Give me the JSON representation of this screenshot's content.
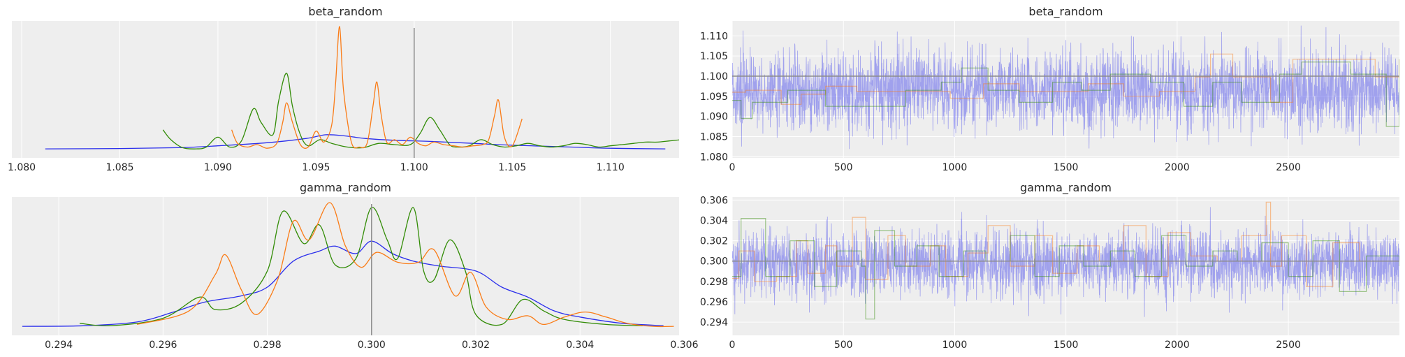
{
  "colors": {
    "panel_bg": "#eeeeee",
    "grid": "#ffffff",
    "ref_line": "#8c8c8c",
    "chain_blue": "#2a2eec",
    "chain_orange": "#fa7c17",
    "chain_green": "#328c06"
  },
  "chart_data": [
    {
      "type": "line",
      "subtype": "kde",
      "title": "beta_random",
      "xlabel": "",
      "ylabel": "",
      "xlim": [
        1.0795,
        1.1135
      ],
      "xticks": [
        1.08,
        1.085,
        1.09,
        1.095,
        1.1,
        1.105,
        1.11
      ],
      "xtick_labels": [
        "1.080",
        "1.085",
        "1.090",
        "1.095",
        "1.100",
        "1.105",
        "1.110"
      ],
      "yticks_visible": false,
      "grid": "x",
      "reference_line": 1.1,
      "series": [
        {
          "color": "#2a2eec",
          "x": [
            1.0812,
            1.085,
            1.088,
            1.09,
            1.0925,
            1.0945,
            1.0955,
            1.0965,
            1.0975,
            1.099,
            1.101,
            1.103,
            1.105,
            1.108,
            1.11,
            1.1128
          ],
          "y": [
            0.005,
            0.008,
            0.015,
            0.03,
            0.055,
            0.09,
            0.12,
            0.11,
            0.09,
            0.075,
            0.065,
            0.05,
            0.035,
            0.02,
            0.01,
            0.005
          ]
        },
        {
          "color": "#328c06",
          "x": [
            1.0872,
            1.0876,
            1.0882,
            1.0889,
            1.0894,
            1.09,
            1.0906,
            1.0912,
            1.0918,
            1.0922,
            1.0928,
            1.0931,
            1.0935,
            1.0938,
            1.0942,
            1.0946,
            1.0952,
            1.0958,
            1.0966,
            1.0974,
            1.0982,
            1.099,
            1.0998,
            1.1003,
            1.1008,
            1.1013,
            1.1018,
            1.1022,
            1.1028,
            1.1034,
            1.104,
            1.1046,
            1.1052,
            1.1058,
            1.1064,
            1.107,
            1.1076,
            1.1082,
            1.1088,
            1.1094,
            1.11,
            1.1106,
            1.1112,
            1.1118,
            1.1124,
            1.113,
            1.1136,
            1.1141
          ],
          "y": [
            0.16,
            0.08,
            0.015,
            0.005,
            0.02,
            0.1,
            0.02,
            0.07,
            0.33,
            0.22,
            0.12,
            0.4,
            0.62,
            0.35,
            0.12,
            0.03,
            0.08,
            0.05,
            0.02,
            0.015,
            0.05,
            0.04,
            0.04,
            0.13,
            0.26,
            0.16,
            0.04,
            0.02,
            0.03,
            0.08,
            0.04,
            0.02,
            0.03,
            0.05,
            0.03,
            0.02,
            0.03,
            0.05,
            0.04,
            0.02,
            0.03,
            0.04,
            0.05,
            0.06,
            0.06,
            0.07,
            0.08,
            0.09
          ]
        },
        {
          "color": "#fa7c17",
          "x": [
            1.0907,
            1.091,
            1.0915,
            1.092,
            1.0925,
            1.093,
            1.0933,
            1.0935,
            1.0938,
            1.0942,
            1.0946,
            1.095,
            1.0954,
            1.0958,
            1.096,
            1.0962,
            1.0964,
            1.0968,
            1.0972,
            1.0976,
            1.0979,
            1.0981,
            1.0983,
            1.0986,
            1.099,
            1.0994,
            1.0998,
            1.1002,
            1.1006,
            1.101,
            1.1015,
            1.102,
            1.1025,
            1.103,
            1.1035,
            1.1038,
            1.1041,
            1.1043,
            1.1046,
            1.105,
            1.1055
          ],
          "y": [
            0.16,
            0.05,
            0.02,
            0.04,
            0.01,
            0.05,
            0.22,
            0.38,
            0.22,
            0.04,
            0.02,
            0.15,
            0.06,
            0.2,
            0.55,
            1.0,
            0.48,
            0.06,
            0.02,
            0.05,
            0.35,
            0.55,
            0.3,
            0.06,
            0.08,
            0.04,
            0.1,
            0.05,
            0.03,
            0.06,
            0.04,
            0.03,
            0.02,
            0.03,
            0.04,
            0.08,
            0.28,
            0.4,
            0.1,
            0.03,
            0.25
          ]
        }
      ]
    },
    {
      "type": "line",
      "subtype": "trace",
      "title": "beta_random",
      "xlabel": "",
      "ylabel": "",
      "xlim": [
        0,
        2999
      ],
      "ylim": [
        1.0797,
        1.1137
      ],
      "xticks": [
        0,
        500,
        1000,
        1500,
        2000,
        2500
      ],
      "xtick_labels": [
        "0",
        "500",
        "1000",
        "1500",
        "2000",
        "2500"
      ],
      "yticks": [
        1.08,
        1.085,
        1.09,
        1.095,
        1.1,
        1.105,
        1.11
      ],
      "ytick_labels": [
        "1.080",
        "1.085",
        "1.090",
        "1.095",
        "1.100",
        "1.105",
        "1.110"
      ],
      "grid": "both",
      "reference_line": 1.1,
      "series": [
        {
          "color": "#2a2eec",
          "style": "noise",
          "n": 3000,
          "mean": 1.0965,
          "sd": 0.0048,
          "min": 1.0812,
          "max": 1.1128
        },
        {
          "color": "#fa7c17",
          "style": "step",
          "x": [
            0,
            60,
            220,
            310,
            420,
            560,
            760,
            980,
            1130,
            1290,
            1470,
            1600,
            1760,
            1920,
            2080,
            2150,
            2250,
            2420,
            2520,
            2760,
            2890,
            2999
          ],
          "y": [
            1.096,
            1.0965,
            1.093,
            1.0955,
            1.0975,
            1.0962,
            1.0962,
            1.0945,
            1.0981,
            1.0962,
            1.0962,
            1.0981,
            1.095,
            1.0962,
            1.0998,
            1.1055,
            1.0998,
            1.0935,
            1.1042,
            1.1042,
            1.0998,
            1.1042
          ]
        },
        {
          "color": "#328c06",
          "style": "step",
          "x": [
            0,
            40,
            90,
            250,
            420,
            600,
            780,
            940,
            1030,
            1150,
            1290,
            1440,
            1570,
            1700,
            1880,
            2030,
            2160,
            2290,
            2460,
            2560,
            2780,
            2940,
            2999
          ],
          "y": [
            1.094,
            1.0895,
            1.0935,
            1.0965,
            1.0925,
            1.0925,
            1.0965,
            1.0985,
            1.102,
            1.0965,
            1.0935,
            1.0985,
            1.0965,
            1.1005,
            1.0985,
            1.0925,
            1.0985,
            1.0935,
            1.1005,
            1.1035,
            1.1005,
            1.0875,
            1.1042
          ]
        }
      ]
    },
    {
      "type": "line",
      "subtype": "kde",
      "title": "gamma_random",
      "xlabel": "",
      "ylabel": "",
      "xlim": [
        0.2931,
        0.3059
      ],
      "xticks": [
        0.294,
        0.296,
        0.298,
        0.3,
        0.302,
        0.304,
        0.306
      ],
      "xtick_labels": [
        "0.294",
        "0.296",
        "0.298",
        "0.300",
        "0.302",
        "0.304",
        "0.306"
      ],
      "yticks_visible": false,
      "grid": "x",
      "reference_line": 0.3,
      "series": [
        {
          "color": "#2a2eec",
          "x": [
            0.2933,
            0.2945,
            0.2955,
            0.2962,
            0.2968,
            0.2975,
            0.298,
            0.2985,
            0.299,
            0.2993,
            0.2997,
            0.3,
            0.3004,
            0.3008,
            0.3013,
            0.302,
            0.3025,
            0.303,
            0.3035,
            0.304,
            0.3048,
            0.3056
          ],
          "y": [
            0.005,
            0.01,
            0.04,
            0.12,
            0.2,
            0.25,
            0.32,
            0.53,
            0.61,
            0.65,
            0.59,
            0.69,
            0.59,
            0.53,
            0.49,
            0.45,
            0.32,
            0.24,
            0.13,
            0.08,
            0.03,
            0.01
          ]
        },
        {
          "color": "#328c06",
          "x": [
            0.2944,
            0.295,
            0.296,
            0.2967,
            0.297,
            0.2975,
            0.298,
            0.2983,
            0.2987,
            0.299,
            0.2993,
            0.2997,
            0.3,
            0.3003,
            0.3005,
            0.3008,
            0.301,
            0.3012,
            0.3015,
            0.3018,
            0.302,
            0.3025,
            0.3029,
            0.3033,
            0.3037,
            0.3045,
            0.3052
          ],
          "y": [
            0.03,
            0.01,
            0.07,
            0.24,
            0.14,
            0.19,
            0.45,
            0.93,
            0.67,
            0.82,
            0.5,
            0.55,
            0.96,
            0.7,
            0.55,
            0.96,
            0.45,
            0.38,
            0.7,
            0.45,
            0.1,
            0.02,
            0.22,
            0.13,
            0.06,
            0.02,
            0.01
          ]
        },
        {
          "color": "#fa7c17",
          "x": [
            0.2955,
            0.2965,
            0.297,
            0.2972,
            0.2975,
            0.2978,
            0.2982,
            0.2985,
            0.2988,
            0.2992,
            0.2995,
            0.2998,
            0.3001,
            0.3005,
            0.3009,
            0.3012,
            0.3016,
            0.3019,
            0.3022,
            0.3026,
            0.303,
            0.3033,
            0.3037,
            0.3041,
            0.3045,
            0.3049,
            0.3054,
            0.3058
          ],
          "y": [
            0.02,
            0.13,
            0.42,
            0.58,
            0.3,
            0.1,
            0.38,
            0.85,
            0.7,
            1.0,
            0.65,
            0.48,
            0.6,
            0.52,
            0.52,
            0.62,
            0.25,
            0.44,
            0.16,
            0.06,
            0.09,
            0.02,
            0.08,
            0.12,
            0.08,
            0.03,
            0.005,
            0.005
          ]
        }
      ]
    },
    {
      "type": "line",
      "subtype": "trace",
      "title": "gamma_random",
      "xlabel": "",
      "ylabel": "",
      "xlim": [
        0,
        2999
      ],
      "ylim": [
        0.2927,
        0.3063
      ],
      "xticks": [
        0,
        500,
        1000,
        1500,
        2000,
        2500
      ],
      "xtick_labels": [
        "0",
        "500",
        "1000",
        "1500",
        "2000",
        "2500"
      ],
      "yticks": [
        0.294,
        0.296,
        0.298,
        0.3,
        0.302,
        0.304,
        0.306
      ],
      "ytick_labels": [
        "0.294",
        "0.296",
        "0.298",
        "0.300",
        "0.302",
        "0.304",
        "0.306"
      ],
      "grid": "both",
      "reference_line": 0.3,
      "series": [
        {
          "color": "#2a2eec",
          "style": "noise",
          "n": 3000,
          "mean": 0.2998,
          "sd": 0.0016,
          "min": 0.2943,
          "max": 0.3054
        },
        {
          "color": "#fa7c17",
          "style": "step",
          "x": [
            0,
            30,
            100,
            200,
            290,
            340,
            420,
            470,
            540,
            600,
            700,
            780,
            890,
            960,
            1060,
            1150,
            1250,
            1360,
            1440,
            1550,
            1650,
            1760,
            1860,
            1960,
            2060,
            2180,
            2290,
            2400,
            2420,
            2470,
            2580,
            2700,
            2820,
            2999
          ],
          "y": [
            0.2983,
            0.301,
            0.298,
            0.2985,
            0.302,
            0.2988,
            0.3015,
            0.2995,
            0.3043,
            0.2982,
            0.3025,
            0.2995,
            0.3015,
            0.2985,
            0.3008,
            0.3035,
            0.2995,
            0.3025,
            0.2988,
            0.3015,
            0.3,
            0.3035,
            0.2985,
            0.3028,
            0.3005,
            0.3,
            0.3025,
            0.3058,
            0.2995,
            0.3025,
            0.2975,
            0.3018,
            0.3,
            0.3
          ]
        },
        {
          "color": "#328c06",
          "style": "step",
          "x": [
            0,
            40,
            150,
            260,
            370,
            470,
            580,
            600,
            640,
            730,
            830,
            930,
            1040,
            1140,
            1250,
            1360,
            1470,
            1580,
            1700,
            1810,
            1930,
            2040,
            2160,
            2270,
            2380,
            2500,
            2610,
            2730,
            2850,
            2999
          ],
          "y": [
            0.2985,
            0.3042,
            0.2985,
            0.302,
            0.2975,
            0.301,
            0.2995,
            0.2943,
            0.303,
            0.2995,
            0.3015,
            0.2985,
            0.301,
            0.3,
            0.3025,
            0.2985,
            0.3015,
            0.2995,
            0.301,
            0.2985,
            0.3025,
            0.2995,
            0.301,
            0.3,
            0.3018,
            0.2985,
            0.302,
            0.297,
            0.3005,
            0.2995
          ]
        }
      ]
    }
  ]
}
